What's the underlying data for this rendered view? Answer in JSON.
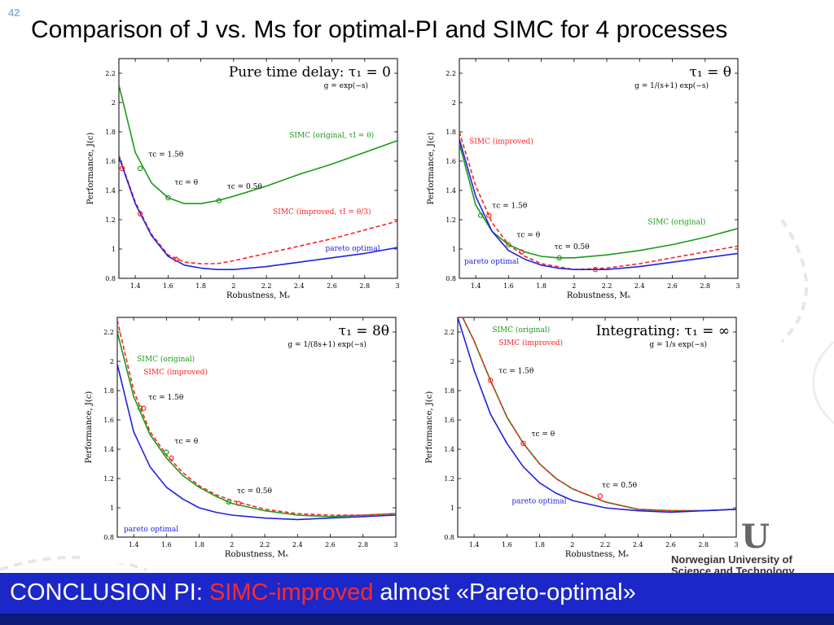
{
  "slide": {
    "number": "42",
    "title": "Comparison of J vs. Ms for optimal-PI and SIMC for 4 processes",
    "conclusion_prefix": "CONCLUSION PI: ",
    "conclusion_highlight": "SIMC-improved",
    "conclusion_suffix": " almost «Pareto-optimal»",
    "university_logo": "U",
    "university_name": "Norwegian University of Science and Technology",
    "colors": {
      "footer_bg": "#1c27c9",
      "simc_original": "#1a9a1a",
      "simc_improved": "#ff2020",
      "pareto": "#2020e0"
    }
  },
  "chart_data": [
    {
      "type": "line",
      "title": "Pure time delay: τ₁ = 0",
      "subtitle": "g = exp(−s)",
      "xlabel": "Robustness, Mₛ",
      "ylabel": "Performance, J(c)",
      "xlim": [
        1.3,
        3.0
      ],
      "ylim": [
        0.8,
        2.3
      ],
      "xticks": [
        "1.4",
        "1.6",
        "1.8",
        "2",
        "2.2",
        "2.4",
        "2.6",
        "2.8",
        "3"
      ],
      "yticks": [
        "0.8",
        "1",
        "1.2",
        "1.4",
        "1.6",
        "1.8",
        "2",
        "2.2"
      ],
      "series": [
        {
          "name": "SIMC (original, τI = θ)",
          "style": "solid",
          "color": "#1a9a1a",
          "x": [
            1.3,
            1.4,
            1.5,
            1.6,
            1.7,
            1.8,
            1.9,
            2.0,
            2.2,
            2.4,
            2.6,
            2.8,
            3.0
          ],
          "y": [
            2.12,
            1.66,
            1.45,
            1.35,
            1.31,
            1.31,
            1.33,
            1.36,
            1.43,
            1.51,
            1.58,
            1.66,
            1.74
          ]
        },
        {
          "name": "SIMC (improved, τI = θ/3)",
          "style": "dashed",
          "color": "#ff2020",
          "x": [
            1.3,
            1.4,
            1.5,
            1.6,
            1.7,
            1.8,
            1.9,
            2.0,
            2.2,
            2.4,
            2.6,
            2.8,
            3.0
          ],
          "y": [
            1.64,
            1.32,
            1.1,
            0.96,
            0.91,
            0.9,
            0.9,
            0.92,
            0.97,
            1.02,
            1.07,
            1.13,
            1.19
          ]
        },
        {
          "name": "pareto optimal",
          "style": "solid",
          "color": "#2020e0",
          "x": [
            1.3,
            1.4,
            1.5,
            1.6,
            1.7,
            1.8,
            1.9,
            2.0,
            2.2,
            2.4,
            2.6,
            2.8,
            3.0
          ],
          "y": [
            1.63,
            1.31,
            1.09,
            0.95,
            0.89,
            0.87,
            0.86,
            0.86,
            0.88,
            0.91,
            0.94,
            0.97,
            1.01
          ]
        }
      ],
      "markers": [
        {
          "series": "SIMC (original, τI = θ)",
          "x": [
            1.43,
            1.6,
            1.91
          ],
          "y": [
            1.55,
            1.35,
            1.33
          ]
        },
        {
          "series": "SIMC (improved, τI = θ/3)",
          "x": [
            1.32,
            1.43,
            1.65
          ],
          "y": [
            1.55,
            1.24,
            0.93
          ]
        }
      ],
      "annotations": [
        {
          "text": "τc = 1.5θ",
          "x": 1.48,
          "y": 1.63,
          "color": "#000"
        },
        {
          "text": "τc = θ",
          "x": 1.64,
          "y": 1.44,
          "color": "#000"
        },
        {
          "text": "τc = 0.5θ",
          "x": 1.96,
          "y": 1.41,
          "color": "#000"
        },
        {
          "text": "SIMC (original, τI = θ)",
          "x": 2.34,
          "y": 1.76,
          "color": "#1a9a1a"
        },
        {
          "text": "SIMC (improved, τI = θ/3)",
          "x": 2.24,
          "y": 1.24,
          "color": "#ff2020"
        },
        {
          "text": "pareto optimal",
          "x": 2.56,
          "y": 0.99,
          "color": "#2020e0"
        }
      ]
    },
    {
      "type": "line",
      "title": "τ₁ = θ",
      "subtitle": "g = 1/(s+1) exp(−s)",
      "xlabel": "Robustness, Mₛ",
      "ylabel": "Performance, J(c)",
      "xlim": [
        1.3,
        3.0
      ],
      "ylim": [
        0.8,
        2.3
      ],
      "xticks": [
        "1.4",
        "1.6",
        "1.8",
        "2",
        "2.2",
        "2.4",
        "2.6",
        "2.8",
        "3"
      ],
      "yticks": [
        "0.8",
        "1",
        "1.2",
        "1.4",
        "1.6",
        "1.8",
        "2",
        "2.2"
      ],
      "series": [
        {
          "name": "SIMC (original)",
          "style": "solid",
          "color": "#1a9a1a",
          "x": [
            1.3,
            1.4,
            1.5,
            1.6,
            1.7,
            1.8,
            1.9,
            2.0,
            2.2,
            2.4,
            2.6,
            2.8,
            3.0
          ],
          "y": [
            1.72,
            1.3,
            1.12,
            1.03,
            0.98,
            0.95,
            0.94,
            0.94,
            0.96,
            0.99,
            1.03,
            1.08,
            1.14
          ]
        },
        {
          "name": "SIMC (improved)",
          "style": "dashed",
          "color": "#ff2020",
          "x": [
            1.3,
            1.4,
            1.5,
            1.6,
            1.7,
            1.8,
            1.9,
            2.0,
            2.2,
            2.4,
            2.6,
            2.8,
            3.0
          ],
          "y": [
            1.8,
            1.43,
            1.18,
            1.03,
            0.95,
            0.9,
            0.88,
            0.86,
            0.87,
            0.9,
            0.94,
            0.98,
            1.02
          ]
        },
        {
          "name": "pareto optimal",
          "style": "solid",
          "color": "#2020e0",
          "x": [
            1.3,
            1.4,
            1.5,
            1.6,
            1.7,
            1.8,
            1.9,
            2.0,
            2.2,
            2.4,
            2.6,
            2.8,
            3.0
          ],
          "y": [
            1.75,
            1.36,
            1.12,
            0.99,
            0.93,
            0.89,
            0.87,
            0.86,
            0.86,
            0.88,
            0.91,
            0.94,
            0.97
          ]
        }
      ],
      "markers": [
        {
          "series": "SIMC (original)",
          "x": [
            1.43,
            1.6,
            1.91
          ],
          "y": [
            1.23,
            1.03,
            0.94
          ]
        },
        {
          "series": "SIMC (improved)",
          "x": [
            1.48,
            1.68,
            2.13
          ],
          "y": [
            1.23,
            0.98,
            0.86
          ]
        }
      ],
      "annotations": [
        {
          "text": "τc = 1.5θ",
          "x": 1.5,
          "y": 1.28,
          "color": "#000"
        },
        {
          "text": "τc = θ",
          "x": 1.65,
          "y": 1.08,
          "color": "#000"
        },
        {
          "text": "τc = 0.5θ",
          "x": 1.88,
          "y": 1.0,
          "color": "#000"
        },
        {
          "text": "SIMC (improved)",
          "x": 1.36,
          "y": 1.72,
          "color": "#ff2020"
        },
        {
          "text": "SIMC (original)",
          "x": 2.45,
          "y": 1.17,
          "color": "#1a9a1a"
        },
        {
          "text": "pareto optimal",
          "x": 1.33,
          "y": 0.9,
          "color": "#2020e0"
        }
      ]
    },
    {
      "type": "line",
      "title": "τ₁ = 8θ",
      "subtitle": "g = 1/(8s+1) exp(−s)",
      "xlabel": "Robustness, Mₛ",
      "ylabel": "Performance, J(c)",
      "xlim": [
        1.3,
        3.0
      ],
      "ylim": [
        0.8,
        2.3
      ],
      "xticks": [
        "1.4",
        "1.6",
        "1.8",
        "2",
        "2.2",
        "2.4",
        "2.6",
        "2.8",
        "3"
      ],
      "yticks": [
        "0.8",
        "1",
        "1.2",
        "1.4",
        "1.6",
        "1.8",
        "2",
        "2.2"
      ],
      "series": [
        {
          "name": "SIMC (original)",
          "style": "solid",
          "color": "#1a9a1a",
          "x": [
            1.3,
            1.4,
            1.5,
            1.6,
            1.7,
            1.8,
            1.9,
            2.0,
            2.2,
            2.4,
            2.6,
            2.8,
            3.0
          ],
          "y": [
            2.2,
            1.76,
            1.5,
            1.34,
            1.22,
            1.14,
            1.08,
            1.03,
            0.98,
            0.95,
            0.94,
            0.95,
            0.96
          ]
        },
        {
          "name": "SIMC (improved)",
          "style": "dashed",
          "color": "#ff2020",
          "x": [
            1.3,
            1.4,
            1.5,
            1.6,
            1.7,
            1.8,
            1.9,
            2.0,
            2.2,
            2.4,
            2.6,
            2.8,
            3.0
          ],
          "y": [
            2.28,
            1.8,
            1.52,
            1.36,
            1.24,
            1.15,
            1.09,
            1.05,
            0.99,
            0.96,
            0.95,
            0.95,
            0.96
          ]
        },
        {
          "name": "pareto optimal",
          "style": "solid",
          "color": "#2020e0",
          "x": [
            1.3,
            1.4,
            1.5,
            1.6,
            1.7,
            1.8,
            1.9,
            2.0,
            2.2,
            2.4,
            2.6,
            2.8,
            3.0
          ],
          "y": [
            1.98,
            1.52,
            1.28,
            1.14,
            1.06,
            1.0,
            0.97,
            0.95,
            0.93,
            0.92,
            0.93,
            0.94,
            0.95
          ]
        }
      ],
      "markers": [
        {
          "series": "SIMC (original)",
          "x": [
            1.44,
            1.6,
            1.98
          ],
          "y": [
            1.68,
            1.38,
            1.04
          ]
        },
        {
          "series": "SIMC (improved)",
          "x": [
            1.46,
            1.63,
            2.04
          ],
          "y": [
            1.68,
            1.34,
            1.03
          ]
        }
      ],
      "annotations": [
        {
          "text": "τc = 1.5θ",
          "x": 1.49,
          "y": 1.74,
          "color": "#000"
        },
        {
          "text": "τc = θ",
          "x": 1.65,
          "y": 1.44,
          "color": "#000"
        },
        {
          "text": "τc = 0.5θ",
          "x": 2.03,
          "y": 1.1,
          "color": "#000"
        },
        {
          "text": "SIMC (original)",
          "x": 1.42,
          "y": 2.0,
          "color": "#1a9a1a"
        },
        {
          "text": "SIMC (improved)",
          "x": 1.46,
          "y": 1.91,
          "color": "#ff2020"
        },
        {
          "text": "pareto optimal",
          "x": 1.34,
          "y": 0.84,
          "color": "#2020e0"
        }
      ]
    },
    {
      "type": "line",
      "title": "Integrating: τ₁ = ∞",
      "subtitle": "g = 1/s exp(−s)",
      "xlabel": "Robustness, Mₛ",
      "ylabel": "Performance, J(c)",
      "xlim": [
        1.3,
        3.0
      ],
      "ylim": [
        0.8,
        2.3
      ],
      "xticks": [
        "1.4",
        "1.6",
        "1.8",
        "2",
        "2.2",
        "2.4",
        "2.6",
        "2.8",
        "3"
      ],
      "yticks": [
        "0.8",
        "1",
        "1.2",
        "1.4",
        "1.6",
        "1.8",
        "2",
        "2.2"
      ],
      "series": [
        {
          "name": "SIMC (original)",
          "style": "solid",
          "color": "#1a9a1a",
          "x": [
            1.33,
            1.4,
            1.5,
            1.6,
            1.7,
            1.8,
            1.9,
            2.0,
            2.2,
            2.4,
            2.6,
            2.8,
            3.0
          ],
          "y": [
            2.3,
            2.14,
            1.87,
            1.62,
            1.44,
            1.3,
            1.2,
            1.13,
            1.04,
            0.99,
            0.98,
            0.98,
            0.99
          ]
        },
        {
          "name": "SIMC (improved)",
          "style": "dashed",
          "color": "#ff2020",
          "x": [
            1.33,
            1.4,
            1.5,
            1.6,
            1.7,
            1.8,
            1.9,
            2.0,
            2.2,
            2.4,
            2.6,
            2.8,
            3.0
          ],
          "y": [
            2.3,
            2.14,
            1.87,
            1.62,
            1.44,
            1.3,
            1.2,
            1.13,
            1.04,
            0.99,
            0.98,
            0.98,
            0.99
          ]
        },
        {
          "name": "pareto optimal",
          "style": "solid",
          "color": "#2020e0",
          "x": [
            1.3,
            1.4,
            1.5,
            1.6,
            1.7,
            1.8,
            1.9,
            2.0,
            2.2,
            2.4,
            2.6,
            2.8,
            3.0
          ],
          "y": [
            2.3,
            1.94,
            1.64,
            1.44,
            1.28,
            1.17,
            1.1,
            1.05,
            1.0,
            0.98,
            0.97,
            0.98,
            0.99
          ]
        }
      ],
      "markers": [
        {
          "series": "SIMC (improved)",
          "x": [
            1.5,
            1.7,
            2.17
          ],
          "y": [
            1.87,
            1.44,
            1.08
          ]
        }
      ],
      "annotations": [
        {
          "text": "τc = 1.5θ",
          "x": 1.55,
          "y": 1.92,
          "color": "#000"
        },
        {
          "text": "τc = θ",
          "x": 1.75,
          "y": 1.49,
          "color": "#000"
        },
        {
          "text": "τc = 0.5θ",
          "x": 2.18,
          "y": 1.14,
          "color": "#000"
        },
        {
          "text": "SIMC (original)",
          "x": 1.51,
          "y": 2.2,
          "color": "#1a9a1a"
        },
        {
          "text": "SIMC (improved)",
          "x": 1.55,
          "y": 2.11,
          "color": "#ff2020"
        },
        {
          "text": "pareto optimal",
          "x": 1.63,
          "y": 1.03,
          "color": "#2020e0"
        }
      ]
    }
  ]
}
